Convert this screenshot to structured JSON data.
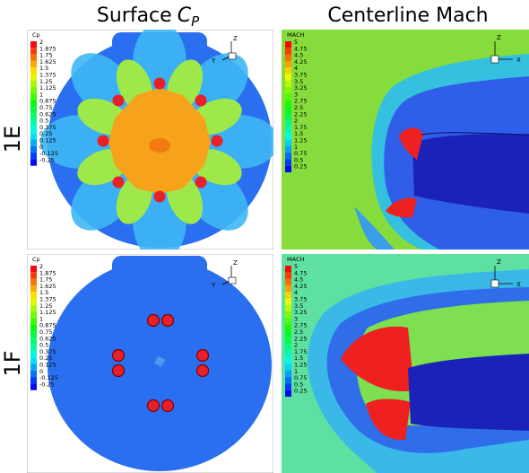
{
  "column_headers": [
    {
      "text": "Surface",
      "symbol": "C",
      "subscript": "P"
    },
    {
      "text": "Centerline Mach"
    }
  ],
  "row_labels": [
    "1E",
    "1F"
  ],
  "legends": {
    "cp": {
      "title": "Cp",
      "labels": [
        "2",
        "1.875",
        "1.75",
        "1.625",
        "1.5",
        "1.375",
        "1.25",
        "1.125",
        "1",
        "0.875",
        "0.75",
        "0.625",
        "0.5",
        "0.375",
        "0.25",
        "0.125",
        "0",
        "-0.125",
        "-0.25"
      ]
    },
    "mach": {
      "title": "MACH",
      "labels": [
        "5",
        "4.75",
        "4.5",
        "4.25",
        "4",
        "3.75",
        "3.5",
        "3.25",
        "3",
        "2.75",
        "2.5",
        "2.25",
        "2",
        "1.75",
        "1.5",
        "1.25",
        "1",
        "0.75",
        "0.5",
        "0.25"
      ]
    }
  },
  "triads": {
    "cp": {
      "up": "Z",
      "side": "Y"
    },
    "mach": {
      "up": "Z",
      "side": "X"
    }
  }
}
